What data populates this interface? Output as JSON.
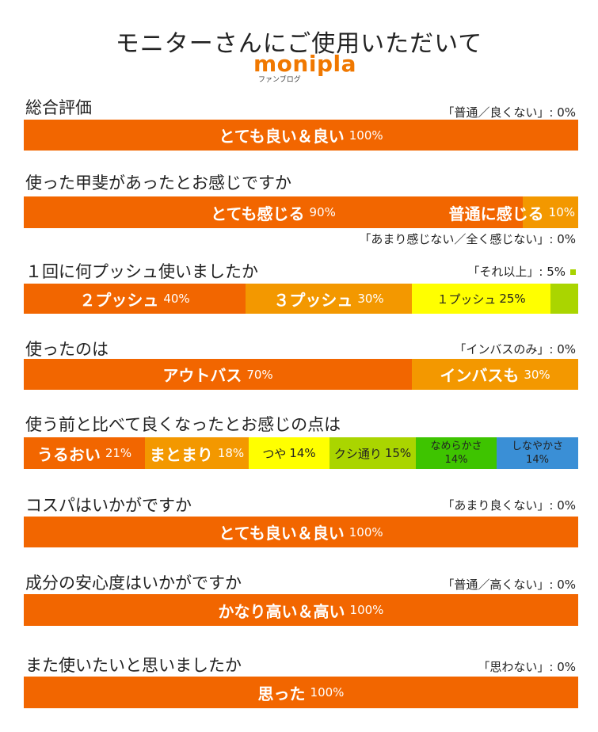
{
  "header": {
    "title": "モニターさんにご使用いただいて",
    "logo_text": "monipla",
    "logo_sub": "ファンブログ"
  },
  "colors": {
    "orange_dark": "#f26600",
    "orange": "#f39800",
    "yellow": "#ffff00",
    "yellow_green": "#aad500",
    "green": "#3ec400",
    "blue": "#3a8fd6"
  },
  "chart_data": [
    {
      "type": "bar",
      "title": "総合評価",
      "note": "「普通／良くない」: 0%",
      "series": [
        {
          "name": "とても良い＆良い",
          "value": 100,
          "value_label": "100%",
          "color": "#f26600",
          "text_color": "#ffffff",
          "style": "big"
        }
      ]
    },
    {
      "type": "bar",
      "title": "使った甲斐があったとお感じですか",
      "note": "「あまり感じない／全く感じない」: 0%",
      "note_below": true,
      "series": [
        {
          "name": "とても感じる",
          "value": 90,
          "value_label": "90%",
          "color": "#f26600",
          "text_color": "#ffffff",
          "style": "big"
        },
        {
          "name": "普通に感じる",
          "value": 10,
          "value_label": "10%",
          "color": "#f39800",
          "text_color": "#ffffff",
          "style": "big",
          "overflow_left": true
        }
      ]
    },
    {
      "type": "bar",
      "title": "１回に何プッシュ使いましたか",
      "note": "「それ以上」: 5%",
      "note_swatch": true,
      "series": [
        {
          "name": "２プッシュ",
          "value": 40,
          "value_label": "40%",
          "color": "#f26600",
          "text_color": "#ffffff",
          "style": "big"
        },
        {
          "name": "３プッシュ",
          "value": 30,
          "value_label": "30%",
          "color": "#f39800",
          "text_color": "#ffffff",
          "style": "big"
        },
        {
          "name": "１プッシュ",
          "value": 25,
          "value_label": "25%",
          "color": "#ffff00",
          "text_color": "#222222",
          "style": "small"
        },
        {
          "name": "",
          "value": 5,
          "value_label": "",
          "color": "#aad500",
          "text_color": "#222222",
          "style": "small"
        }
      ]
    },
    {
      "type": "bar",
      "title": "使ったのは",
      "note": "「インバスのみ」: 0%",
      "series": [
        {
          "name": "アウトバス",
          "value": 70,
          "value_label": "70%",
          "color": "#f26600",
          "text_color": "#ffffff",
          "style": "big"
        },
        {
          "name": "インバスも",
          "value": 30,
          "value_label": "30%",
          "color": "#f39800",
          "text_color": "#ffffff",
          "style": "big"
        }
      ]
    },
    {
      "type": "bar",
      "title": "使う前と比べて良くなったとお感じの点は",
      "note": "",
      "series": [
        {
          "name": "うるおい",
          "value": 21,
          "value_label": "21%",
          "color": "#f26600",
          "text_color": "#ffffff",
          "style": "big"
        },
        {
          "name": "まとまり",
          "value": 18,
          "value_label": "18%",
          "color": "#f39800",
          "text_color": "#ffffff",
          "style": "big"
        },
        {
          "name": "つや",
          "value": 14,
          "value_label": "14%",
          "color": "#ffff00",
          "text_color": "#222222",
          "style": "small"
        },
        {
          "name": "クシ通り",
          "value": 15,
          "value_label": "15%",
          "color": "#aad500",
          "text_color": "#222222",
          "style": "small"
        },
        {
          "name": "なめらかさ",
          "value": 14,
          "value_label": "14%",
          "color": "#3ec400",
          "text_color": "#222222",
          "style": "stack"
        },
        {
          "name": "しなやかさ",
          "value": 14,
          "value_label": "14%",
          "color": "#3a8fd6",
          "text_color": "#222222",
          "style": "stack"
        }
      ]
    },
    {
      "type": "bar",
      "title": "コスパはいかがですか",
      "note": "「あまり良くない」: 0%",
      "series": [
        {
          "name": "とても良い＆良い",
          "value": 100,
          "value_label": "100%",
          "color": "#f26600",
          "text_color": "#ffffff",
          "style": "big"
        }
      ]
    },
    {
      "type": "bar",
      "title": "成分の安心度はいかがですか",
      "note": "「普通／高くない」: 0%",
      "series": [
        {
          "name": "かなり高い＆高い",
          "value": 100,
          "value_label": "100%",
          "color": "#f26600",
          "text_color": "#ffffff",
          "style": "big"
        }
      ]
    },
    {
      "type": "bar",
      "title": "また使いたいと思いましたか",
      "note": "「思わない」: 0%",
      "series": [
        {
          "name": "思った",
          "value": 100,
          "value_label": "100%",
          "color": "#f26600",
          "text_color": "#ffffff",
          "style": "big"
        }
      ]
    }
  ]
}
